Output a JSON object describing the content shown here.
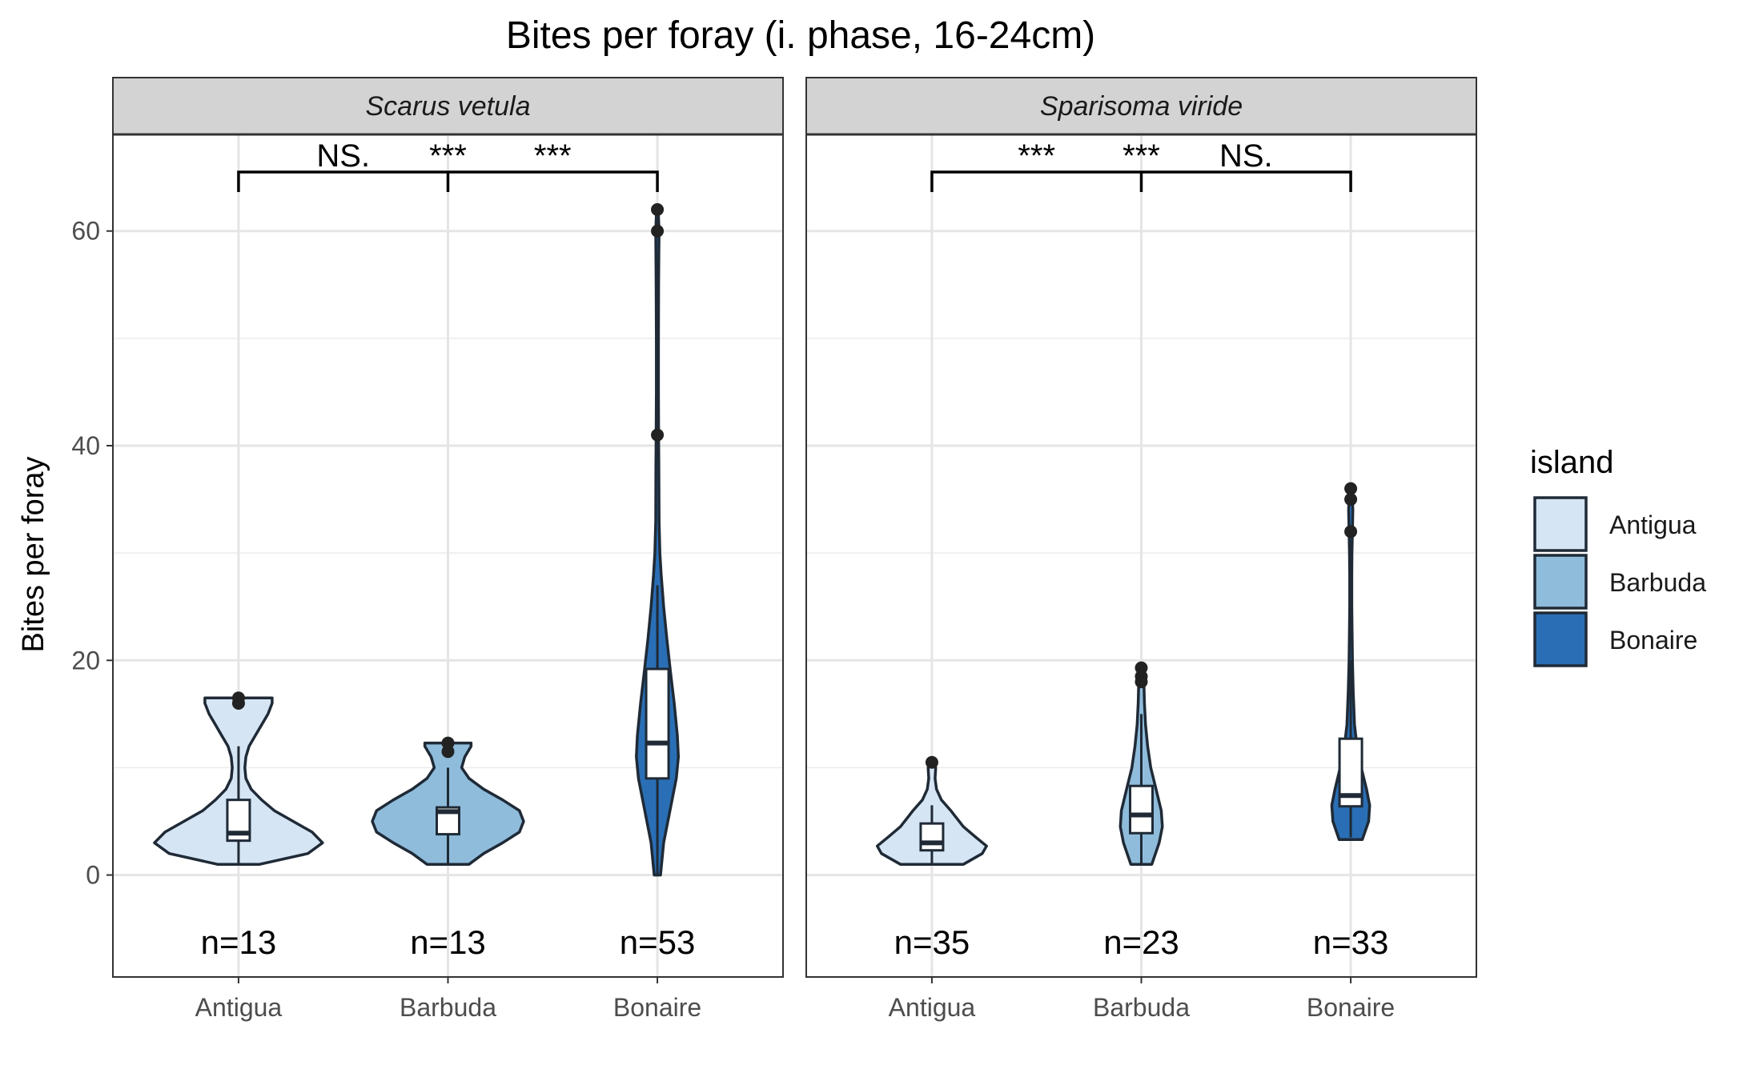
{
  "chart_data": {
    "type": "violin",
    "title": "Bites per foray (i. phase, 16-24cm)",
    "ylabel": "Bites per foray",
    "xlabel": "",
    "ylim": [
      -9.5,
      69
    ],
    "yticks": [
      0,
      20,
      40,
      60
    ],
    "grid": true,
    "categories": [
      "Antigua",
      "Barbuda",
      "Bonaire"
    ],
    "colors": {
      "Antigua": "#d6e5f4",
      "Barbuda": "#8fbcdb",
      "Bonaire": "#2a6fb5"
    },
    "legend": {
      "title": "island",
      "position": "right",
      "items": [
        "Antigua",
        "Barbuda",
        "Bonaire"
      ]
    },
    "panels": [
      {
        "species": "Scarus vetula",
        "significance": [
          "NS.",
          "***",
          "***"
        ],
        "groups": [
          {
            "island": "Antigua",
            "n_label": "n=13",
            "box": {
              "min": 1,
              "q1": 3.2,
              "median": 3.9,
              "q3": 7,
              "max": 12
            },
            "outliers": [
              16,
              16.5
            ],
            "violin": [
              [
                1,
                1
              ],
              [
                2,
                3.3
              ],
              [
                3,
                4.0
              ],
              [
                4,
                3.5
              ],
              [
                5,
                2.6
              ],
              [
                6,
                1.7
              ],
              [
                7,
                1.1
              ],
              [
                8,
                0.6
              ],
              [
                9,
                0.35
              ],
              [
                10,
                0.3
              ],
              [
                11,
                0.35
              ],
              [
                12,
                0.5
              ],
              [
                13,
                0.8
              ],
              [
                14,
                1.1
              ],
              [
                15,
                1.4
              ],
              [
                16,
                1.6
              ],
              [
                16.5,
                1.6
              ]
            ]
          },
          {
            "island": "Barbuda",
            "n_label": "n=13",
            "box": {
              "min": 1,
              "q1": 3.8,
              "median": 5.9,
              "q3": 6.3,
              "max": 10
            },
            "outliers": [
              11.5,
              12.3
            ],
            "violin": [
              [
                1,
                1
              ],
              [
                2,
                1.7
              ],
              [
                3,
                2.6
              ],
              [
                4,
                3.4
              ],
              [
                5,
                3.6
              ],
              [
                6,
                3.4
              ],
              [
                7,
                2.6
              ],
              [
                8,
                1.7
              ],
              [
                9,
                1.0
              ],
              [
                10,
                0.65
              ],
              [
                11,
                0.8
              ],
              [
                12,
                1.1
              ],
              [
                12.3,
                1.1
              ]
            ]
          },
          {
            "island": "Bonaire",
            "n_label": "n=53",
            "box": {
              "min": 0,
              "q1": 9,
              "median": 12.3,
              "q3": 19.2,
              "max": 27
            },
            "outliers": [
              41,
              60,
              62
            ],
            "violin": [
              [
                0,
                0.15
              ],
              [
                3,
                0.3
              ],
              [
                6,
                0.6
              ],
              [
                9,
                0.9
              ],
              [
                11,
                1.0
              ],
              [
                13,
                0.95
              ],
              [
                16,
                0.8
              ],
              [
                19,
                0.62
              ],
              [
                22,
                0.45
              ],
              [
                25,
                0.3
              ],
              [
                28,
                0.18
              ],
              [
                30,
                0.12
              ],
              [
                33,
                0.08
              ],
              [
                38,
                0.07
              ],
              [
                41,
                0.06
              ],
              [
                45,
                0.05
              ],
              [
                50,
                0.05
              ],
              [
                55,
                0.06
              ],
              [
                58,
                0.07
              ],
              [
                60,
                0.08
              ],
              [
                62,
                0.04
              ]
            ]
          }
        ]
      },
      {
        "species": "Sparisoma viride",
        "significance": [
          "***",
          "***",
          "NS."
        ],
        "groups": [
          {
            "island": "Antigua",
            "n_label": "n=35",
            "box": {
              "min": 1,
              "q1": 2.3,
              "median": 3,
              "q3": 4.8,
              "max": 6.5
            },
            "outliers": [
              10.5
            ],
            "violin": [
              [
                1,
                1.5
              ],
              [
                2,
                2.4
              ],
              [
                2.7,
                2.6
              ],
              [
                3.5,
                2.1
              ],
              [
                4.5,
                1.5
              ],
              [
                5.5,
                1.1
              ],
              [
                6,
                0.9
              ],
              [
                7,
                0.45
              ],
              [
                8,
                0.22
              ],
              [
                9,
                0.15
              ],
              [
                10,
                0.18
              ],
              [
                10.5,
                0.1
              ]
            ]
          },
          {
            "island": "Barbuda",
            "n_label": "n=23",
            "box": {
              "min": 1,
              "q1": 3.9,
              "median": 5.6,
              "q3": 8.3,
              "max": 15
            },
            "outliers": [
              18,
              18.5,
              19.3
            ],
            "violin": [
              [
                1,
                0.5
              ],
              [
                3,
                0.85
              ],
              [
                4.5,
                1.0
              ],
              [
                6,
                0.95
              ],
              [
                8,
                0.7
              ],
              [
                10,
                0.45
              ],
              [
                12,
                0.3
              ],
              [
                14,
                0.2
              ],
              [
                16,
                0.15
              ],
              [
                18,
                0.12
              ],
              [
                19.5,
                0.1
              ]
            ]
          },
          {
            "island": "Bonaire",
            "n_label": "n=33",
            "box": {
              "min": 3.5,
              "q1": 6.4,
              "median": 7.4,
              "q3": 12.7,
              "max": 20
            },
            "outliers": [
              32,
              35,
              36
            ],
            "violin": [
              [
                3.3,
                0.55
              ],
              [
                5,
                0.85
              ],
              [
                6.5,
                0.9
              ],
              [
                8,
                0.75
              ],
              [
                10,
                0.5
              ],
              [
                12,
                0.3
              ],
              [
                14,
                0.18
              ],
              [
                17,
                0.12
              ],
              [
                20,
                0.08
              ],
              [
                25,
                0.05
              ],
              [
                28,
                0.05
              ],
              [
                30,
                0.06
              ],
              [
                32,
                0.08
              ],
              [
                34,
                0.1
              ],
              [
                36,
                0.06
              ]
            ]
          }
        ]
      }
    ]
  }
}
